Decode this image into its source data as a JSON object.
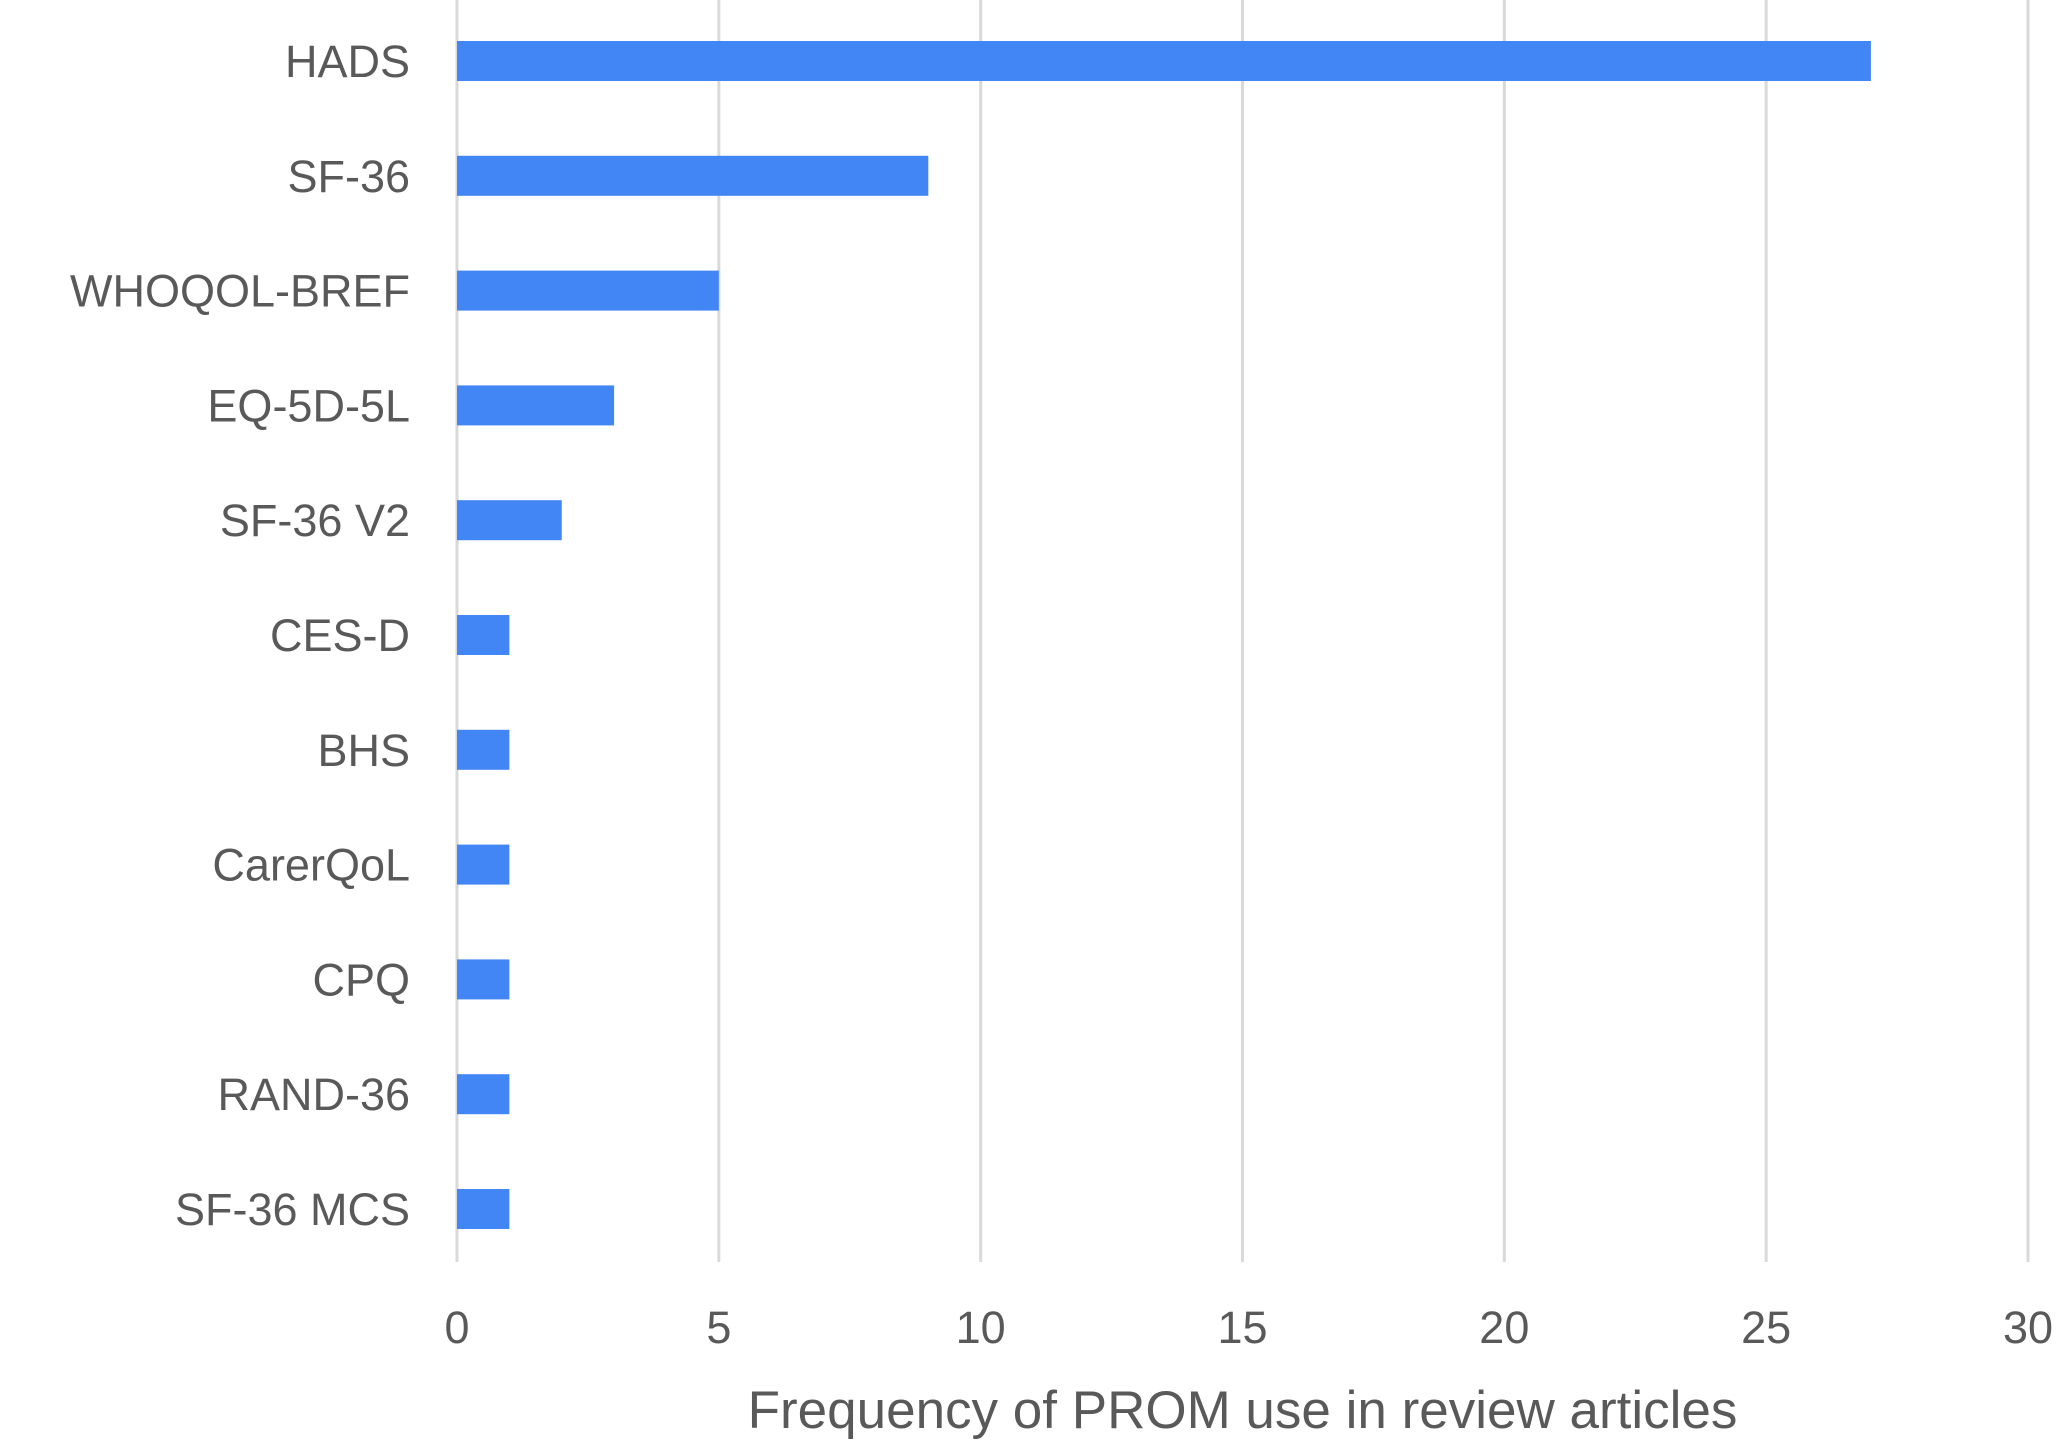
{
  "chart_data": {
    "type": "bar",
    "orientation": "horizontal",
    "categories": [
      "HADS",
      "SF-36",
      "WHOQOL-BREF",
      "EQ-5D-5L",
      "SF-36 V2",
      "CES-D",
      "BHS",
      "CarerQoL",
      "CPQ",
      "RAND-36",
      "SF-36 MCS"
    ],
    "values": [
      27,
      9,
      5,
      3,
      2,
      1,
      1,
      1,
      1,
      1,
      1
    ],
    "xlabel": "Frequency of PROM use in review articles",
    "ylabel": "",
    "title": "",
    "xlim": [
      0,
      30
    ],
    "xticks": [
      0,
      5,
      10,
      15,
      20,
      25,
      30
    ],
    "grid": "vertical",
    "legend": "none",
    "bar_color": "#4285f4"
  }
}
